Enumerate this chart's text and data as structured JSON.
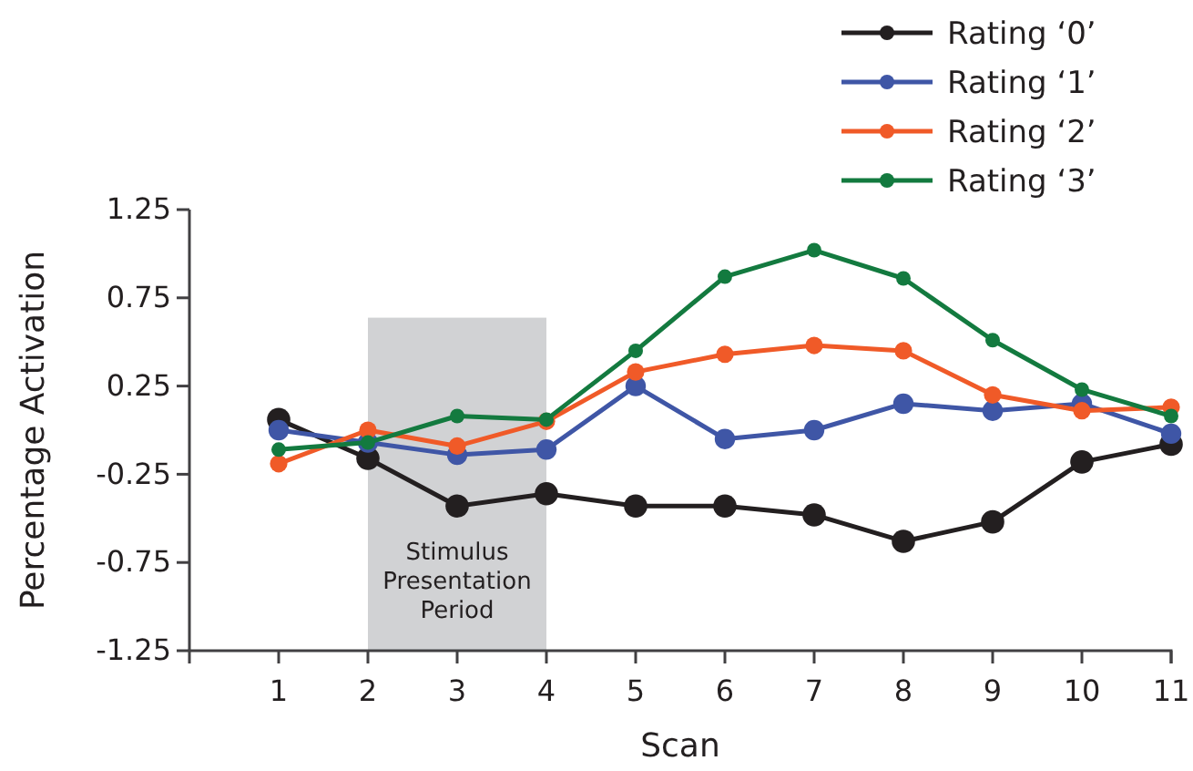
{
  "chart_data": {
    "type": "line",
    "xlabel": "Scan",
    "ylabel": "Percentage Activation",
    "x": [
      1,
      2,
      3,
      4,
      5,
      6,
      7,
      8,
      9,
      10,
      11
    ],
    "xlim": [
      0,
      11
    ],
    "xticks": [
      1,
      2,
      3,
      4,
      5,
      6,
      7,
      8,
      9,
      10,
      11
    ],
    "ylim": [
      -1.25,
      1.25
    ],
    "yticks": [
      -1.25,
      -0.75,
      -0.25,
      0.25,
      0.75,
      1.25
    ],
    "marker": "circle",
    "legend": "top right",
    "bands": [
      {
        "axis": "x",
        "from": 2,
        "to": 4,
        "label": "Stimulus Presentation Period",
        "color": "#d1d2d4"
      }
    ],
    "series": [
      {
        "name": "Rating ‘0’",
        "color": "#231f20",
        "values": [
          0.06,
          -0.16,
          -0.43,
          -0.36,
          -0.43,
          -0.43,
          -0.48,
          -0.63,
          -0.52,
          -0.18,
          -0.08
        ]
      },
      {
        "name": "Rating ‘1’",
        "color": "#3f56a6",
        "values": [
          0.0,
          -0.07,
          -0.14,
          -0.11,
          0.25,
          -0.05,
          0.0,
          0.15,
          0.11,
          0.15,
          -0.02
        ]
      },
      {
        "name": "Rating ‘2’",
        "color": "#f05a28",
        "values": [
          -0.19,
          0.0,
          -0.09,
          0.05,
          0.33,
          0.43,
          0.48,
          0.45,
          0.2,
          0.11,
          0.13
        ]
      },
      {
        "name": "Rating ‘3’",
        "color": "#137a3f",
        "values": [
          -0.11,
          -0.07,
          0.08,
          0.06,
          0.45,
          0.87,
          1.02,
          0.86,
          0.51,
          0.23,
          0.08
        ]
      }
    ]
  }
}
